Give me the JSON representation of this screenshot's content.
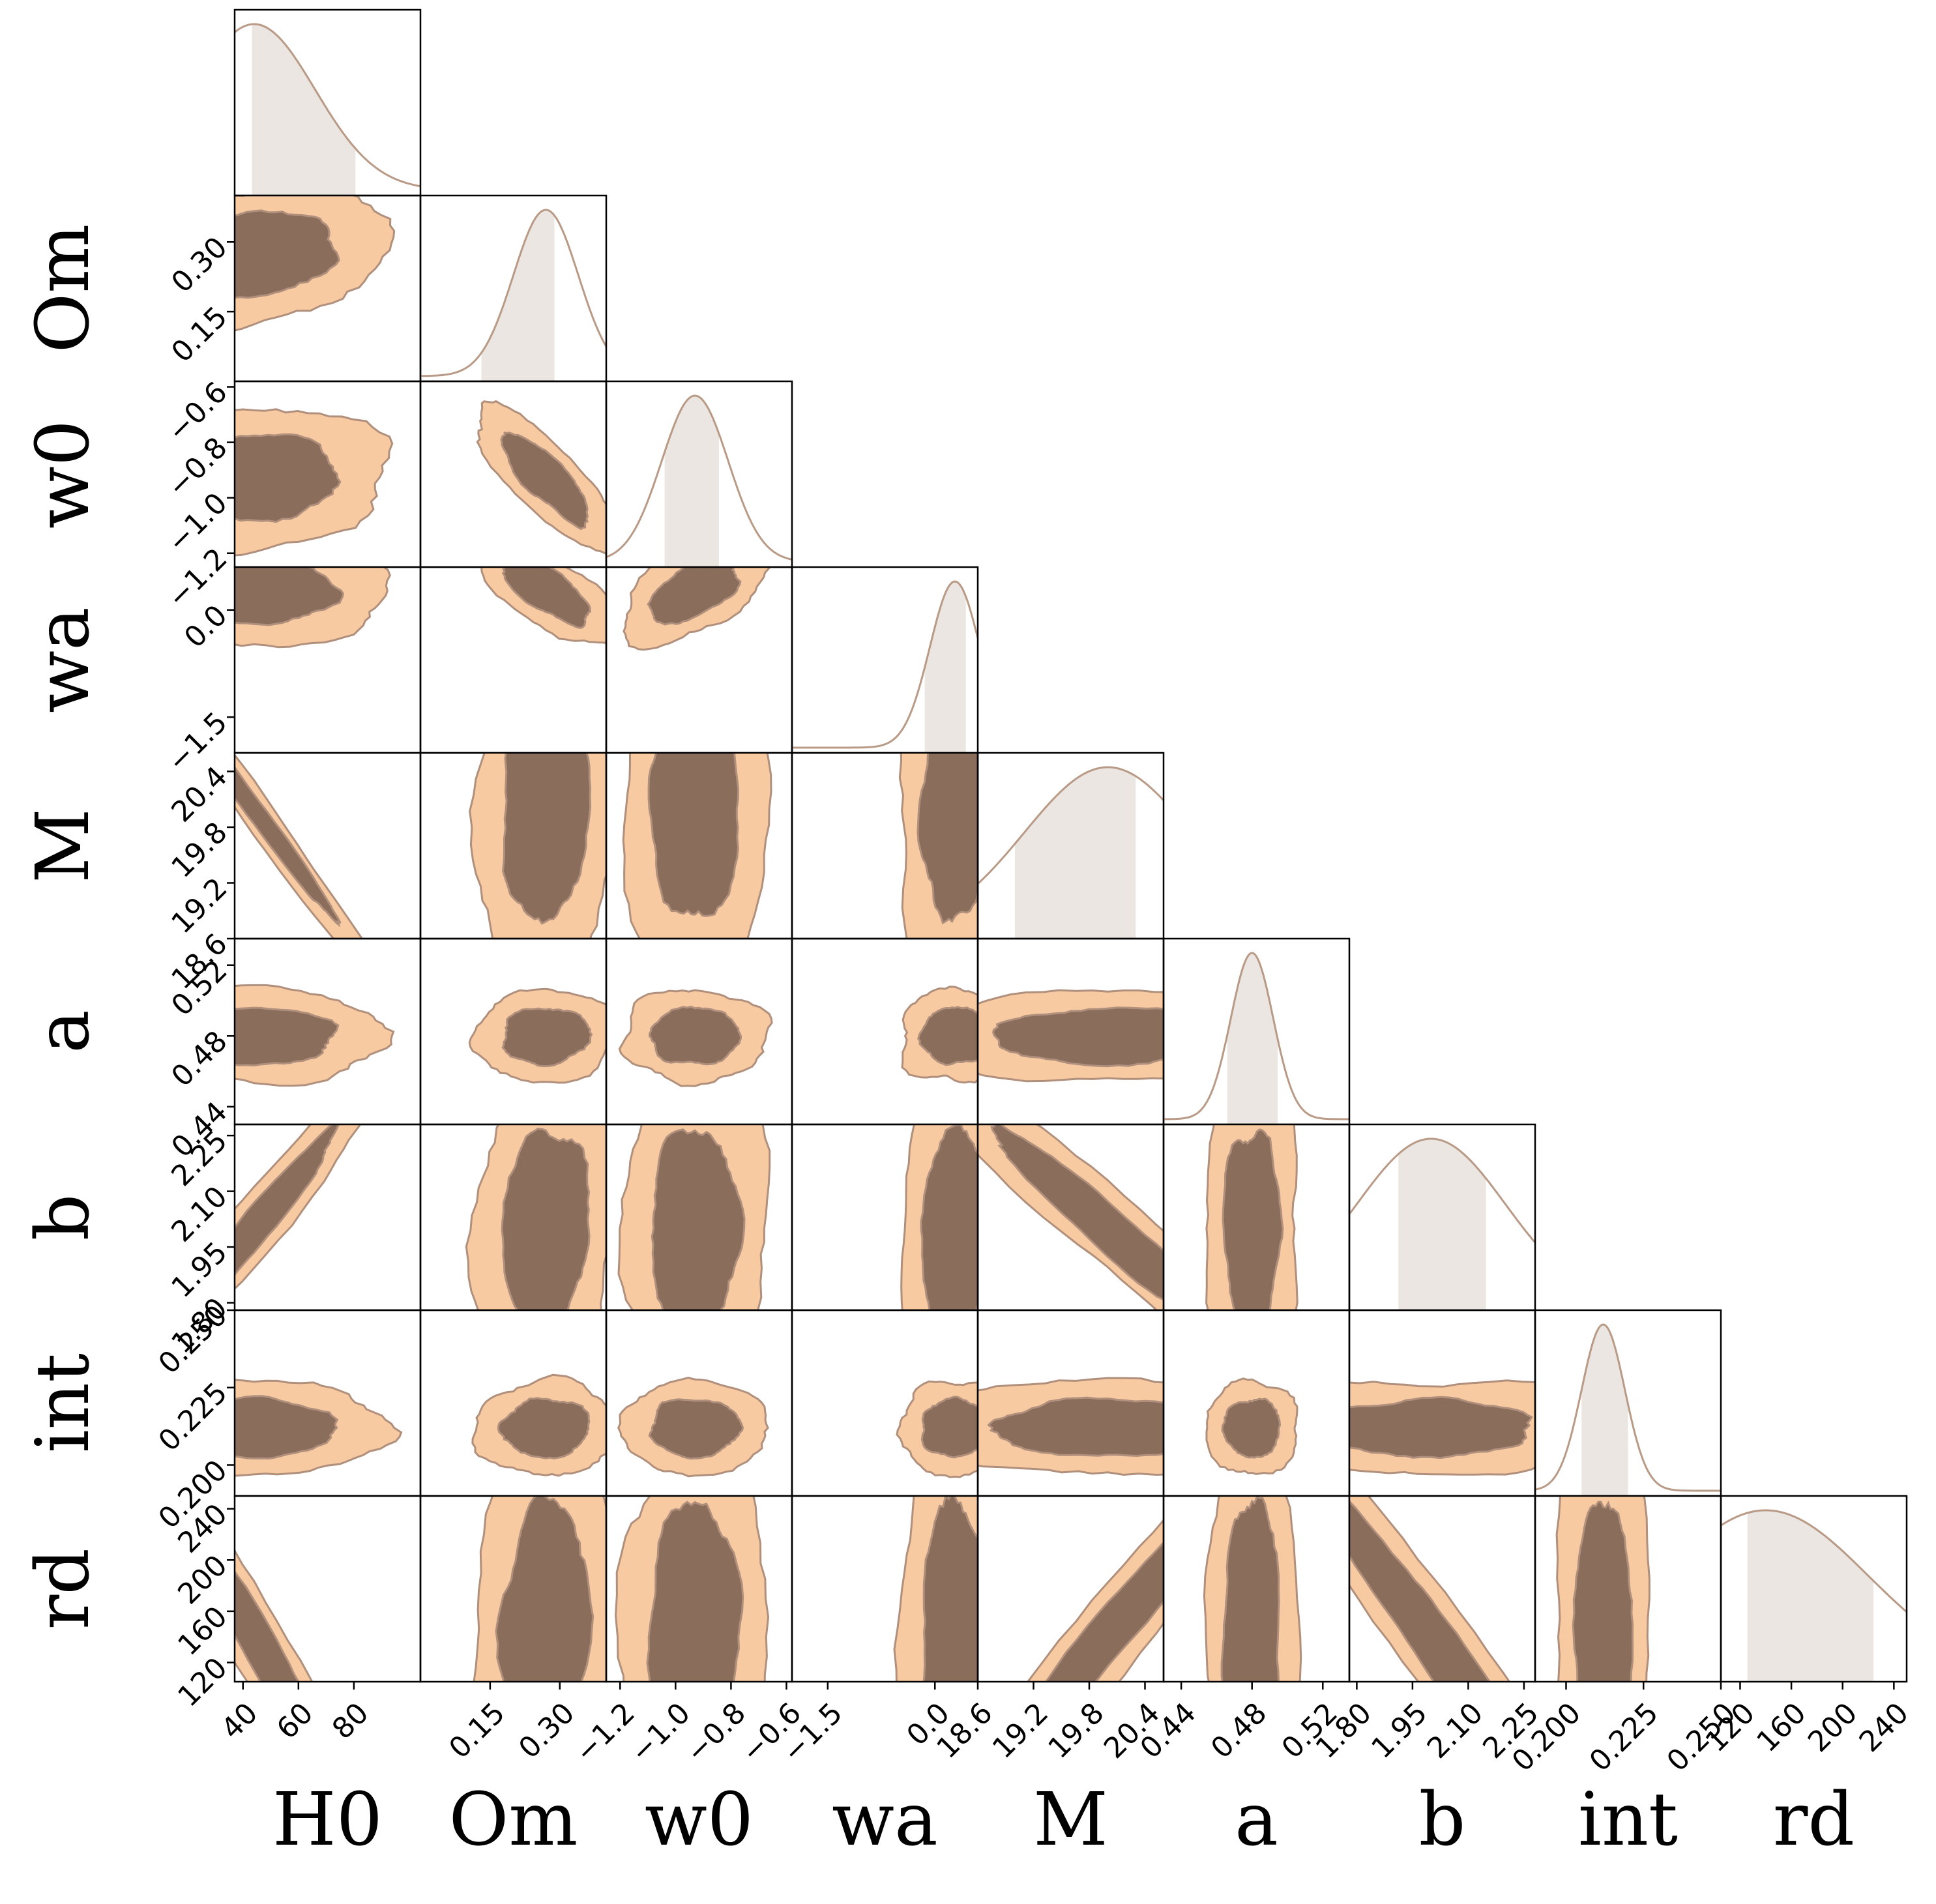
{
  "chart_data": {
    "type": "corner",
    "parameters": [
      {
        "name": "H0",
        "label": "H0",
        "range": [
          37,
          104
        ],
        "ticks": [
          40,
          60,
          80
        ],
        "tick_labels": [
          "40",
          "60",
          "80"
        ],
        "mode": 44,
        "spread": 22,
        "hdi": [
          43,
          81
        ]
      },
      {
        "name": "Om",
        "label": "Om",
        "range": [
          0.0,
          0.4
        ],
        "ticks": [
          0.15,
          0.3
        ],
        "tick_labels": [
          "0.15",
          "0.30"
        ],
        "mode": 0.27,
        "spread": 0.07,
        "hdi": [
          0.13,
          0.29
        ]
      },
      {
        "name": "w0",
        "label": "w0",
        "range": [
          -1.25,
          -0.58
        ],
        "ticks": [
          -1.2,
          -1.0,
          -0.8,
          -0.6
        ],
        "tick_labels": [
          "−1.2",
          "−1.0",
          "−0.8",
          "−0.6"
        ],
        "mode": -0.93,
        "spread": 0.12,
        "hdi": [
          -1.04,
          -0.84
        ]
      },
      {
        "name": "wa",
        "label": "wa",
        "range": [
          -2.0,
          0.6
        ],
        "ticks": [
          -1.5,
          0.0
        ],
        "tick_labels": [
          "−1.5",
          "0.0"
        ],
        "mode": 0.28,
        "spread": 0.35,
        "hdi": [
          -0.15,
          0.45
        ]
      },
      {
        "name": "M",
        "label": "M",
        "range": [
          18.6,
          20.6
        ],
        "ticks": [
          18.6,
          19.2,
          19.8,
          20.4
        ],
        "tick_labels": [
          "18.6",
          "19.2",
          "19.8",
          "20.4"
        ],
        "mode": 20.0,
        "spread": 0.9,
        "hdi": [
          19.0,
          20.3
        ]
      },
      {
        "name": "a",
        "label": "a",
        "range": [
          0.43,
          0.535
        ],
        "ticks": [
          0.44,
          0.48,
          0.52
        ],
        "tick_labels": [
          "0.44",
          "0.48",
          "0.52"
        ],
        "mode": 0.48,
        "spread": 0.012,
        "hdi": [
          0.466,
          0.495
        ]
      },
      {
        "name": "b",
        "label": "b",
        "range": [
          1.78,
          2.28
        ],
        "ticks": [
          1.8,
          1.95,
          2.1,
          2.25
        ],
        "tick_labels": [
          "1.80",
          "1.95",
          "2.10",
          "2.25"
        ],
        "mode": 2.0,
        "spread": 0.2,
        "hdi": [
          1.91,
          2.15
        ]
      },
      {
        "name": "int",
        "label": "int",
        "range": [
          0.19,
          0.25
        ],
        "ticks": [
          0.2,
          0.225,
          0.25
        ],
        "tick_labels": [
          "0.200",
          "0.225",
          "0.250"
        ],
        "mode": 0.212,
        "spread": 0.007,
        "hdi": [
          0.205,
          0.22
        ]
      },
      {
        "name": "rd",
        "label": "rd",
        "range": [
          105,
          250
        ],
        "ticks": [
          120,
          160,
          200,
          240
        ],
        "tick_labels": [
          "120",
          "160",
          "200",
          "240"
        ],
        "mode": 140,
        "spread": 80,
        "hdi": [
          125,
          225
        ]
      }
    ],
    "correlations": [
      [
        1
      ],
      [
        0.25,
        1
      ],
      [
        0.1,
        -0.8,
        1
      ],
      [
        -0.1,
        -0.7,
        0.55,
        1
      ],
      [
        -0.99,
        0.1,
        0.0,
        0.1,
        1
      ],
      [
        0.0,
        0.05,
        0.0,
        0.0,
        0.05,
        1
      ],
      [
        0.97,
        0.1,
        0.0,
        0.1,
        -0.96,
        0.0,
        1
      ],
      [
        0.0,
        0.05,
        0.0,
        0.05,
        0.0,
        0.0,
        0.0,
        1
      ],
      [
        -0.97,
        0.05,
        0.0,
        0.05,
        0.97,
        0.0,
        -0.96,
        0.0,
        1
      ]
    ],
    "contour_levels": [
      "68%",
      "95%"
    ],
    "grid": false,
    "legend": "none"
  },
  "colors": {
    "inner_fill": "#8b6d5c",
    "outer_fill": "#f8caa1",
    "contour_line": "#b0907c",
    "marginal_line": "#b89a86",
    "marginal_fill": "#ece6e2",
    "frame": "#000000"
  }
}
